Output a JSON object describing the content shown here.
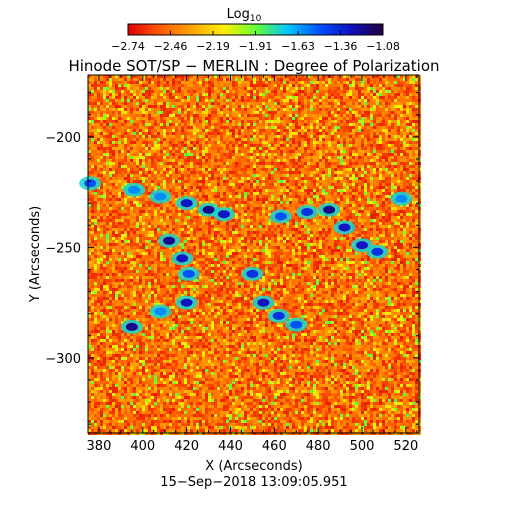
{
  "chart_data": {
    "type": "heatmap",
    "title": "Hinode SOT/SP − MERLIN : Degree of Polarization",
    "xlabel": "X (Arcseconds)",
    "ylabel": "Y (Arcseconds)",
    "footer": "15−Sep−2018 13:09:05.951",
    "xlim": [
      375,
      526
    ],
    "ylim": [
      -334,
      -172
    ],
    "xticks": [
      380,
      400,
      420,
      440,
      460,
      480,
      500,
      520
    ],
    "xtick_labels": [
      "380",
      "400",
      "420",
      "440",
      "460",
      "480",
      "500",
      "520"
    ],
    "yticks": [
      -200,
      -250,
      -300
    ],
    "ytick_labels": [
      "−200",
      "−250",
      "−300"
    ],
    "colorbar": {
      "label_base": "Log",
      "label_sub": "10",
      "range": [
        -2.74,
        -1.08
      ],
      "tick_labels": [
        "−2.74",
        "−2.46",
        "−2.19",
        "−1.91",
        "−1.63",
        "−1.36",
        "−1.08"
      ],
      "colors": [
        "#e00000",
        "#ff5a00",
        "#ffa500",
        "#ffee00",
        "#66ff33",
        "#00c8ff",
        "#0050ff",
        "#1010c0",
        "#200040"
      ]
    },
    "background_level": -2.5,
    "high_polarization_regions": [
      {
        "x": 376,
        "y": -221,
        "value": -1.5
      },
      {
        "x": 396,
        "y": -224,
        "value": -1.6
      },
      {
        "x": 408,
        "y": -227,
        "value": -1.6
      },
      {
        "x": 420,
        "y": -230,
        "value": -1.3
      },
      {
        "x": 430,
        "y": -233,
        "value": -1.2
      },
      {
        "x": 437,
        "y": -235,
        "value": -1.3
      },
      {
        "x": 412,
        "y": -247,
        "value": -1.2
      },
      {
        "x": 418,
        "y": -255,
        "value": -1.3
      },
      {
        "x": 421,
        "y": -262,
        "value": -1.5
      },
      {
        "x": 420,
        "y": -275,
        "value": -1.3
      },
      {
        "x": 408,
        "y": -279,
        "value": -1.6
      },
      {
        "x": 395,
        "y": -286,
        "value": -1.2
      },
      {
        "x": 450,
        "y": -262,
        "value": -1.4
      },
      {
        "x": 455,
        "y": -275,
        "value": -1.3
      },
      {
        "x": 462,
        "y": -281,
        "value": -1.4
      },
      {
        "x": 470,
        "y": -285,
        "value": -1.5
      },
      {
        "x": 463,
        "y": -236,
        "value": -1.5
      },
      {
        "x": 475,
        "y": -234,
        "value": -1.4
      },
      {
        "x": 485,
        "y": -233,
        "value": -1.2
      },
      {
        "x": 492,
        "y": -241,
        "value": -1.3
      },
      {
        "x": 500,
        "y": -249,
        "value": -1.3
      },
      {
        "x": 507,
        "y": -252,
        "value": -1.4
      },
      {
        "x": 518,
        "y": -228,
        "value": -1.6
      }
    ]
  }
}
